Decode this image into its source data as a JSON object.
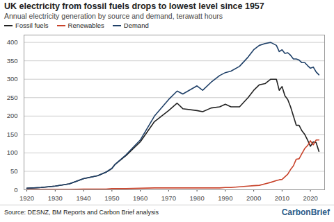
{
  "chart_data": {
    "type": "line",
    "title": "UK electricity from fossil fuels drops to lowest level since 1957",
    "subtitle": "Annual electricity generation by source and demand, terawatt hours",
    "source": "Source: DESNZ, BM Reports and Carbon Brief analysis",
    "logo": "CarbonBrief",
    "x": [
      1920,
      1925,
      1930,
      1935,
      1940,
      1945,
      1948,
      1950,
      1951,
      1955,
      1960,
      1965,
      1970,
      1973,
      1975,
      1980,
      1982,
      1985,
      1988,
      1990,
      1992,
      1995,
      1998,
      2000,
      2002,
      2004,
      2006,
      2008,
      2009,
      2010,
      2011,
      2012,
      2013,
      2014,
      2015,
      2016,
      2017,
      2018,
      2019,
      2020,
      2021,
      2022,
      2023
    ],
    "series": [
      {
        "name": "Fossil fuels",
        "color": "#222222",
        "values": [
          4,
          6,
          10,
          16,
          30,
          38,
          48,
          58,
          68,
          93,
          130,
          185,
          215,
          235,
          220,
          215,
          212,
          222,
          225,
          232,
          225,
          225,
          250,
          270,
          285,
          288,
          300,
          300,
          270,
          280,
          255,
          245,
          225,
          200,
          175,
          175,
          160,
          150,
          135,
          118,
          130,
          128,
          104
        ]
      },
      {
        "name": "Renewables",
        "color": "#c8432b",
        "values": [
          1,
          1,
          1,
          1,
          2,
          2,
          2,
          3,
          3,
          3,
          4,
          5,
          5,
          5,
          5,
          5,
          5,
          5,
          5,
          6,
          6,
          8,
          10,
          11,
          12,
          16,
          20,
          25,
          27,
          28,
          35,
          42,
          55,
          65,
          83,
          84,
          98,
          112,
          120,
          133,
          122,
          135,
          135
        ]
      },
      {
        "name": "Demand",
        "color": "#1f4068",
        "values": [
          4,
          6,
          10,
          16,
          30,
          38,
          48,
          58,
          68,
          95,
          135,
          200,
          245,
          268,
          260,
          282,
          270,
          292,
          310,
          318,
          322,
          335,
          360,
          380,
          392,
          397,
          400,
          392,
          375,
          380,
          370,
          372,
          365,
          355,
          355,
          352,
          345,
          345,
          337,
          330,
          333,
          320,
          312
        ]
      }
    ],
    "xlim": [
      1919,
      2025
    ],
    "xticks": [
      1920,
      1930,
      1940,
      1950,
      1960,
      1970,
      1980,
      1990,
      2000,
      2010,
      2020
    ],
    "ylim": [
      0,
      420
    ],
    "yticks": [
      0,
      50,
      100,
      150,
      200,
      250,
      300,
      350,
      400
    ],
    "grid": true,
    "legend": "top-left"
  }
}
